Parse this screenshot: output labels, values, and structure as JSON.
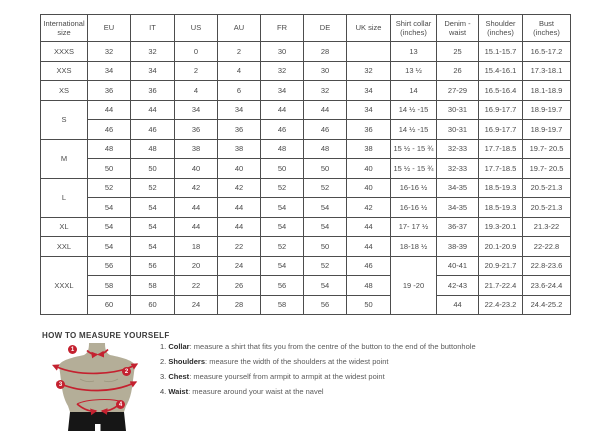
{
  "table": {
    "headers": [
      "International size",
      "EU",
      "IT",
      "US",
      "AU",
      "FR",
      "DE",
      "UK size",
      "Shirt collar (inches)",
      "Denim - waist",
      "Shoulder (inches)",
      "Bust (inches)"
    ],
    "rows": [
      [
        "XXXS",
        "32",
        "32",
        "0",
        "2",
        "30",
        "28",
        "",
        "13",
        "25",
        "15.1-15.7",
        "16.5-17.2"
      ],
      [
        "XXS",
        "34",
        "34",
        "2",
        "4",
        "32",
        "30",
        "32",
        "13 ½",
        "26",
        "15.4-16.1",
        "17.3-18.1"
      ],
      [
        "XS",
        "36",
        "36",
        "4",
        "6",
        "34",
        "32",
        "34",
        "14",
        "27-29",
        "16.5-16.4",
        "18.1-18.9"
      ],
      [
        {
          "t": "S",
          "r": 2
        },
        "44",
        "44",
        "34",
        "34",
        "44",
        "44",
        "34",
        "14 ½ -15",
        "30-31",
        "16.9-17.7",
        "18.9-19.7"
      ],
      [
        null,
        "46",
        "46",
        "36",
        "36",
        "46",
        "46",
        "36",
        "14 ½ -15",
        "30-31",
        "16.9-17.7",
        "18.9-19.7"
      ],
      [
        {
          "t": "M",
          "r": 2
        },
        "48",
        "48",
        "38",
        "38",
        "48",
        "48",
        "38",
        "15 ½ - 15 ¾",
        "32-33",
        "17.7-18.5",
        "19.7- 20.5"
      ],
      [
        null,
        "50",
        "50",
        "40",
        "40",
        "50",
        "50",
        "40",
        "15 ½ - 15 ¾",
        "32-33",
        "17.7-18.5",
        "19.7- 20.5"
      ],
      [
        {
          "t": "L",
          "r": 2
        },
        "52",
        "52",
        "42",
        "42",
        "52",
        "52",
        "40",
        "16-16 ½",
        "34-35",
        "18.5-19.3",
        "20.5-21.3"
      ],
      [
        null,
        "54",
        "54",
        "44",
        "44",
        "54",
        "54",
        "42",
        "16-16 ½",
        "34-35",
        "18.5-19.3",
        "20.5-21.3"
      ],
      [
        "XL",
        "54",
        "54",
        "44",
        "44",
        "54",
        "54",
        "44",
        "17- 17 ½",
        "36-37",
        "19.3-20.1",
        "21.3-22"
      ],
      [
        "XXL",
        "54",
        "54",
        "18",
        "22",
        "52",
        "50",
        "44",
        "18-18 ½",
        "38-39",
        "20.1-20.9",
        "22-22.8"
      ],
      [
        {
          "t": "XXXL",
          "r": 3
        },
        "56",
        "56",
        "20",
        "24",
        "54",
        "52",
        "46",
        {
          "t": "19 -20",
          "r": 3
        },
        "40-41",
        "20.9-21.7",
        "22.8-23.6"
      ],
      [
        null,
        "58",
        "58",
        "22",
        "26",
        "56",
        "54",
        "48",
        null,
        "42-43",
        "21.7-22.4",
        "23.6-24.4"
      ],
      [
        null,
        "60",
        "60",
        "24",
        "28",
        "58",
        "56",
        "50",
        null,
        "44",
        "22.4-23.2",
        "24.4-25.2"
      ]
    ]
  },
  "measure": {
    "title": "HOW TO MEASURE YOURSELF",
    "steps": [
      {
        "badge": "1",
        "num": "1. ",
        "term": "Collar",
        "text": ": measure a shirt that fits you from the centre of the button to the end of the buttonhole"
      },
      {
        "badge": "2",
        "num": "2. ",
        "term": "Shoulders",
        "text": ": measure the width of the shoulders at the widest point"
      },
      {
        "badge": "3",
        "num": "3. ",
        "term": "Chest",
        "text": ": measure yourself from armpit to armpit at the widest point"
      },
      {
        "badge": "4",
        "num": "4. ",
        "term": "Waist",
        "text": ": measure around your waist at the navel"
      }
    ]
  },
  "colors": {
    "accent_red": "#c4212f",
    "torso": "#b4ae98",
    "shorts": "#161616",
    "border": "#4d4d4d"
  }
}
